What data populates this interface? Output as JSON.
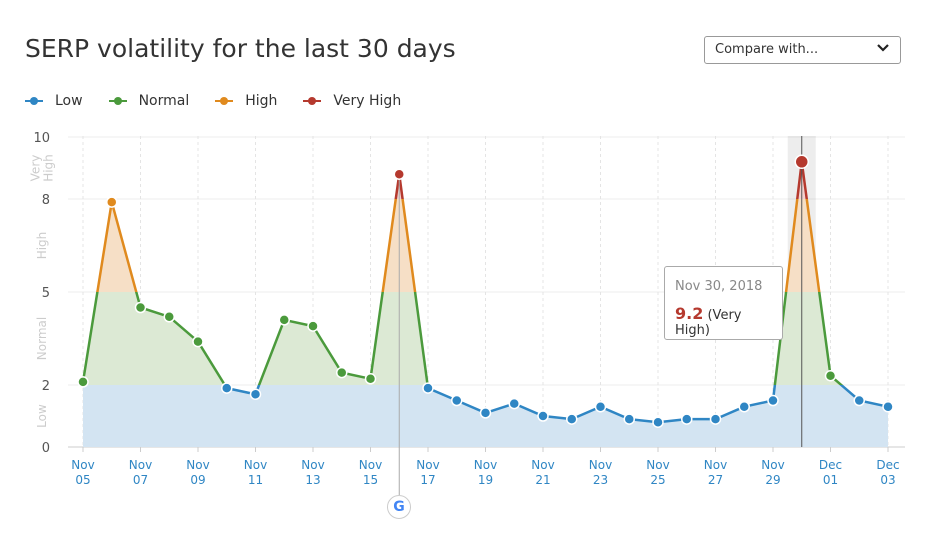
{
  "header": {
    "title": "SERP volatility for the last 30 days",
    "compare_label": "Compare with..."
  },
  "legend": [
    {
      "label": "Low",
      "color": "#2f86c4"
    },
    {
      "label": "Normal",
      "color": "#4b9a3c"
    },
    {
      "label": "High",
      "color": "#e08a1e"
    },
    {
      "label": "Very High",
      "color": "#b5392e"
    }
  ],
  "tooltip": {
    "date": "Nov 30, 2018",
    "value": "9.2",
    "level": "(Very High)"
  },
  "chart_data": {
    "type": "area",
    "title": "SERP volatility for the last 30 days",
    "ylim": [
      0,
      10
    ],
    "yticks": [
      0,
      2,
      5,
      8,
      10
    ],
    "bands": [
      {
        "label": "Low",
        "from": 0,
        "to": 2
      },
      {
        "label": "Normal",
        "from": 2,
        "to": 5
      },
      {
        "label": "High",
        "from": 5,
        "to": 8
      },
      {
        "label": "Very High",
        "from": 8,
        "to": 10
      }
    ],
    "x": [
      "Nov 05",
      "Nov 06",
      "Nov 07",
      "Nov 08",
      "Nov 09",
      "Nov 10",
      "Nov 11",
      "Nov 12",
      "Nov 13",
      "Nov 14",
      "Nov 15",
      "Nov 16",
      "Nov 17",
      "Nov 18",
      "Nov 19",
      "Nov 20",
      "Nov 21",
      "Nov 22",
      "Nov 23",
      "Nov 24",
      "Nov 25",
      "Nov 26",
      "Nov 27",
      "Nov 28",
      "Nov 29",
      "Nov 30",
      "Dec 01",
      "Dec 02",
      "Dec 03"
    ],
    "xtick_labels": [
      [
        "Nov",
        "05"
      ],
      [
        "Nov",
        "07"
      ],
      [
        "Nov",
        "09"
      ],
      [
        "Nov",
        "11"
      ],
      [
        "Nov",
        "13"
      ],
      [
        "Nov",
        "15"
      ],
      [
        "Nov",
        "17"
      ],
      [
        "Nov",
        "19"
      ],
      [
        "Nov",
        "21"
      ],
      [
        "Nov",
        "23"
      ],
      [
        "Nov",
        "25"
      ],
      [
        "Nov",
        "27"
      ],
      [
        "Nov",
        "29"
      ],
      [
        "Dec",
        "01"
      ],
      [
        "Dec",
        "03"
      ]
    ],
    "values": [
      2.1,
      7.9,
      4.5,
      4.2,
      3.4,
      1.9,
      1.7,
      4.1,
      3.9,
      2.4,
      2.2,
      8.8,
      1.9,
      1.5,
      1.1,
      1.4,
      1.0,
      0.9,
      1.3,
      0.9,
      0.8,
      0.9,
      0.9,
      1.3,
      1.5,
      9.2,
      2.3,
      1.5,
      1.3
    ],
    "highlighted": "Nov 30",
    "annotation": {
      "date": "Nov 16",
      "icon": "google-icon"
    },
    "grid": true
  }
}
